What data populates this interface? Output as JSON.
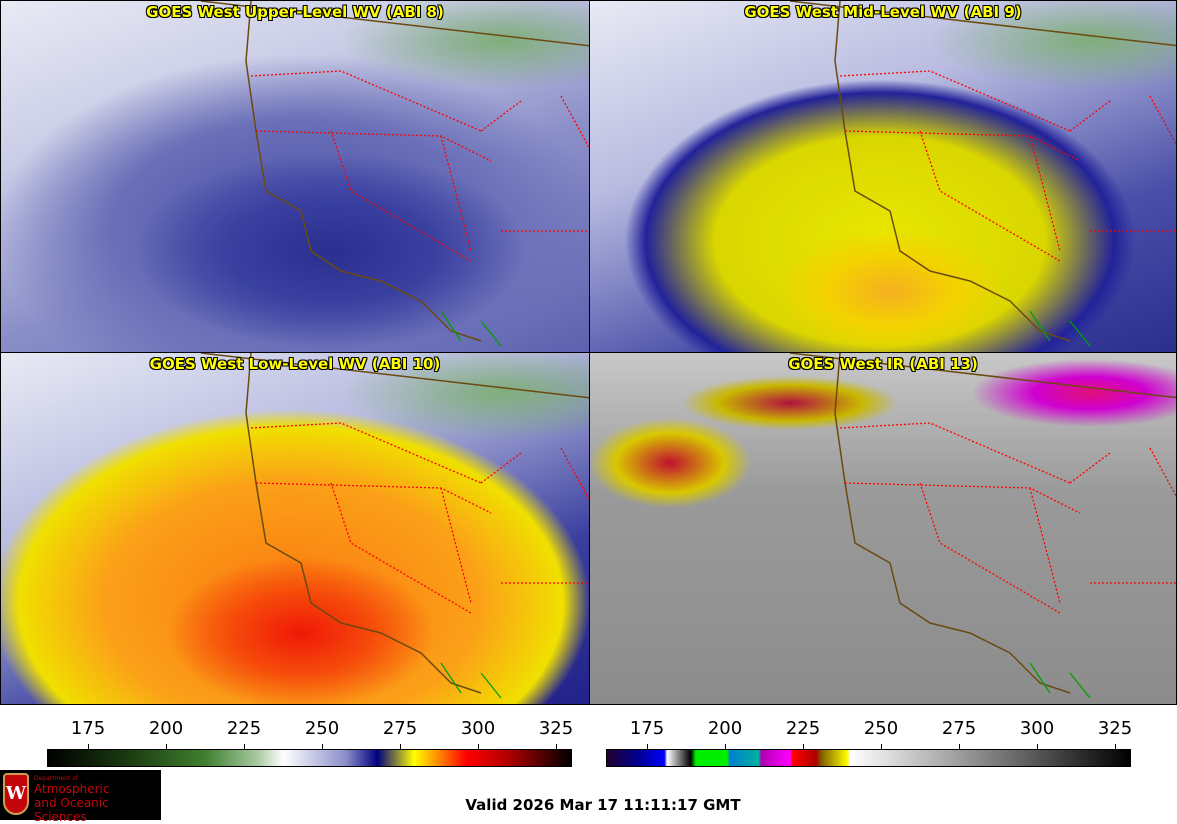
{
  "panels": [
    {
      "title": "GOES West Upper-Level WV (ABI 8)"
    },
    {
      "title": "GOES West Mid-Level WV (ABI 9)"
    },
    {
      "title": "GOES West Low-Level WV (ABI 10)"
    },
    {
      "title": "GOES West IR (ABI 13)"
    }
  ],
  "colorbars": [
    {
      "name": "water-vapor",
      "ticks": [
        "175",
        "200",
        "225",
        "250",
        "275",
        "300",
        "325"
      ]
    },
    {
      "name": "infrared",
      "ticks": [
        "175",
        "200",
        "225",
        "250",
        "275",
        "300",
        "325"
      ]
    }
  ],
  "logo": {
    "line1": "Department of",
    "line2": "Atmospheric",
    "line3": "and Oceanic Sciences",
    "letter": "W"
  },
  "valid_time": "Valid 2026 Mar 17 11:11:17 GMT",
  "colors": {
    "title": "#ffff00",
    "state_borders": "#ff0000",
    "coastline": "#6b4a10"
  }
}
